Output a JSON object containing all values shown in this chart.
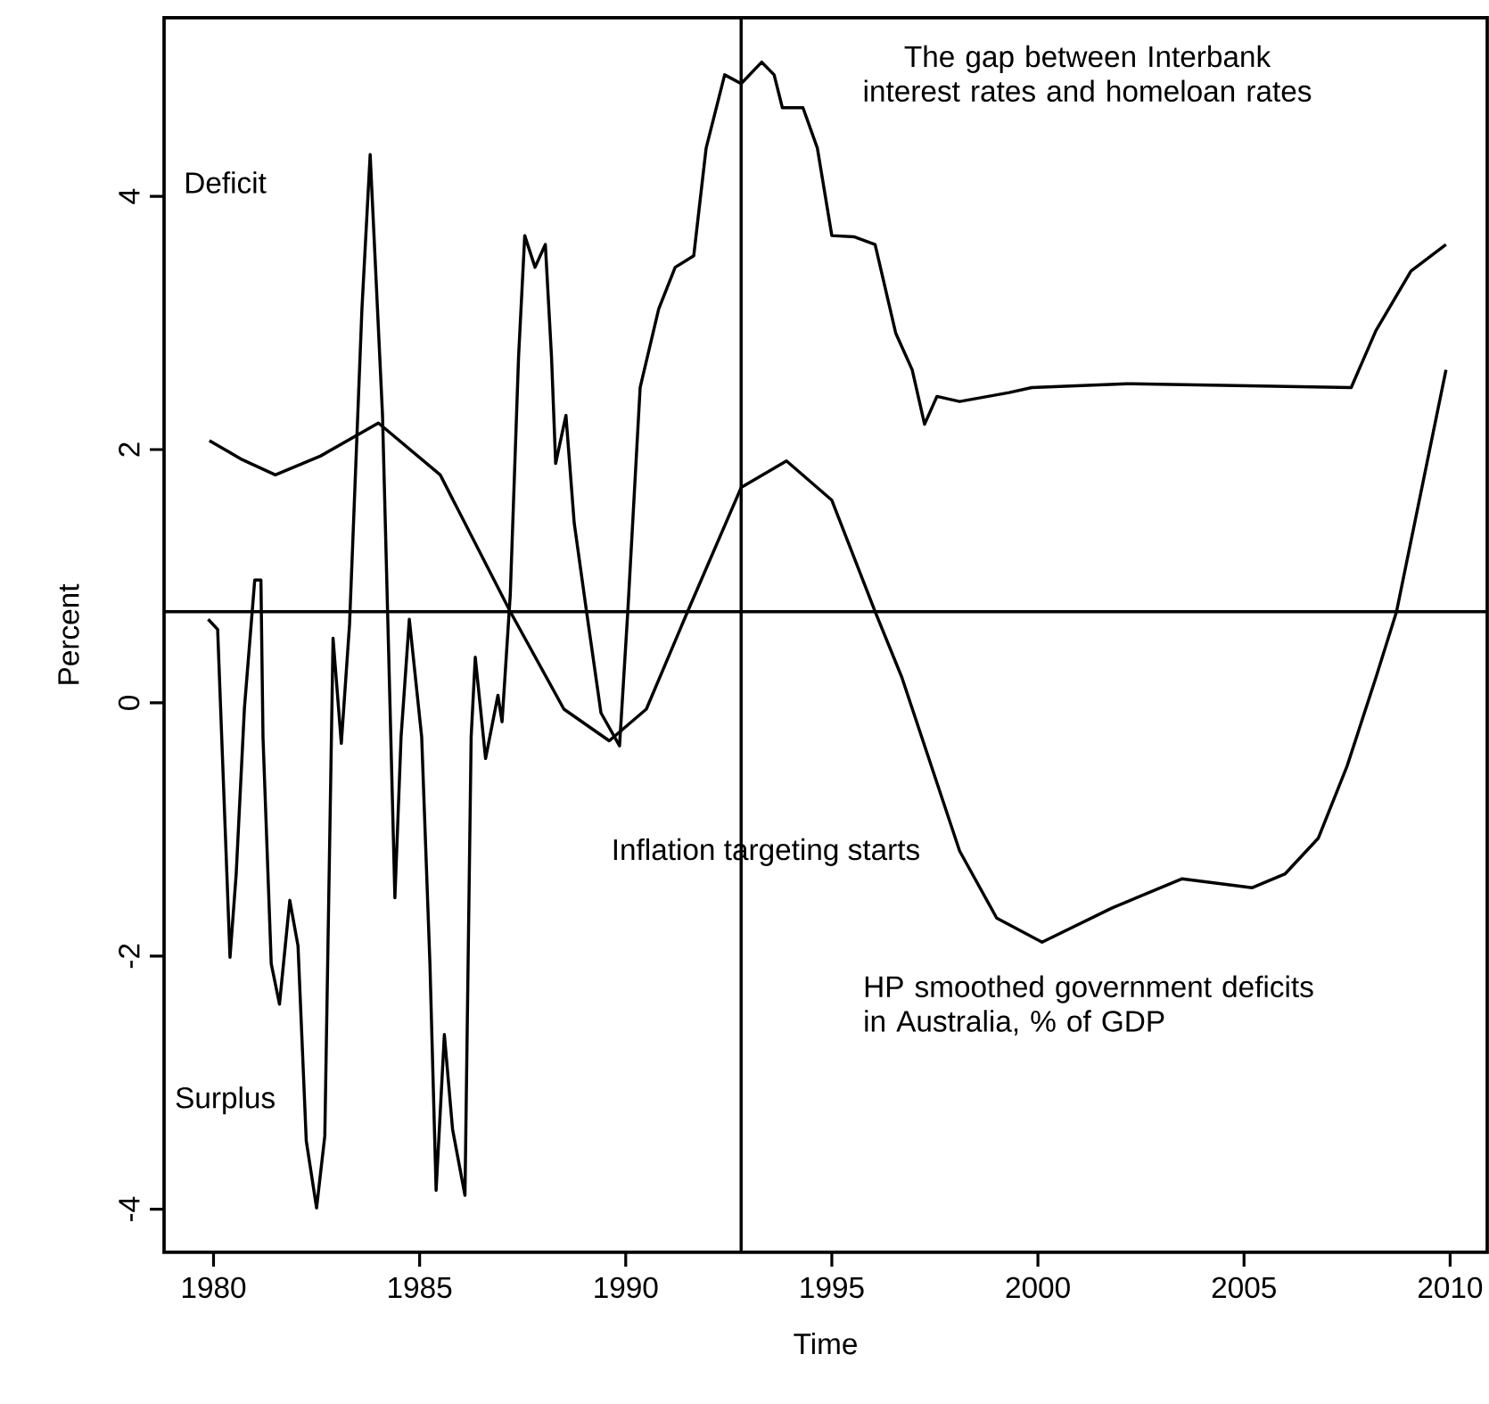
{
  "chart_data": {
    "type": "line",
    "xlabel": "Time",
    "ylabel": "Percent",
    "xlim": [
      1978.8,
      2010.9
    ],
    "ylim": [
      -4.34,
      5.41
    ],
    "xticks": [
      1980,
      1985,
      1990,
      1995,
      2000,
      2005,
      2010
    ],
    "yticks": [
      -4,
      -2,
      0,
      2,
      4
    ],
    "marker": "none",
    "line_style": "solid",
    "grid": false,
    "legend": false,
    "series": [
      {
        "name": "The gap between Interbank interest rates and homeloan rates",
        "color": "#000000",
        "x": [
          1979.87,
          1980.1,
          1980.4,
          1980.55,
          1980.75,
          1981.0,
          1981.15,
          1981.2,
          1981.4,
          1981.6,
          1981.85,
          1982.05,
          1982.25,
          1982.5,
          1982.7,
          1982.9,
          1983.1,
          1983.3,
          1983.6,
          1983.8,
          1984.1,
          1984.25,
          1984.4,
          1984.55,
          1984.75,
          1985.05,
          1985.25,
          1985.4,
          1985.6,
          1985.8,
          1986.1,
          1986.25,
          1986.35,
          1986.6,
          1986.9,
          1987.0,
          1987.2,
          1987.4,
          1987.55,
          1987.8,
          1988.05,
          1988.2,
          1988.3,
          1988.55,
          1988.75,
          1989.05,
          1989.4,
          1989.85,
          1990.05,
          1990.35,
          1990.8,
          1991.2,
          1991.65,
          1991.95,
          1992.4,
          1992.8,
          1993.3,
          1993.6,
          1993.8,
          1994.3,
          1994.65,
          1995.0,
          1995.55,
          1996.05,
          1996.55,
          1996.95,
          1997.25,
          1997.55,
          1998.1,
          1999.3,
          1999.85,
          2002.15,
          2007.6,
          2008.2,
          2009.05,
          2009.9
        ],
        "values": [
          0.66,
          0.58,
          -2.01,
          -1.35,
          -0.04,
          0.97,
          0.97,
          -0.27,
          -2.06,
          -2.38,
          -1.56,
          -1.92,
          -3.46,
          -3.99,
          -3.42,
          0.51,
          -0.32,
          0.62,
          3.11,
          4.33,
          2.27,
          0.38,
          -1.54,
          -0.27,
          0.66,
          -0.27,
          -2.06,
          -3.85,
          -2.62,
          -3.37,
          -3.89,
          -0.27,
          0.36,
          -0.44,
          0.06,
          -0.15,
          0.86,
          2.73,
          3.69,
          3.44,
          3.62,
          2.73,
          1.89,
          2.27,
          1.42,
          0.72,
          -0.08,
          -0.34,
          0.72,
          2.49,
          3.11,
          3.44,
          3.53,
          4.38,
          4.96,
          4.89,
          5.06,
          4.96,
          4.7,
          4.7,
          4.38,
          3.69,
          3.68,
          3.62,
          2.92,
          2.63,
          2.2,
          2.42,
          2.38,
          2.45,
          2.49,
          2.52,
          2.49,
          2.94,
          3.41,
          3.62
        ]
      },
      {
        "name": "HP smoothed government deficits in Australia, % of GDP",
        "color": "#000000",
        "x": [
          1979.9,
          1980.7,
          1981.5,
          1982.6,
          1984.0,
          1985.5,
          1987.2,
          1988.5,
          1989.6,
          1990.5,
          1991.5,
          1992.8,
          1993.9,
          1995.0,
          1996.05,
          1996.7,
          1998.1,
          1999.0,
          2000.1,
          2001.8,
          2003.5,
          2005.2,
          2006.0,
          2006.8,
          2007.5,
          2008.2,
          2008.7,
          2009.9
        ],
        "values": [
          2.07,
          1.92,
          1.8,
          1.95,
          2.21,
          1.8,
          0.72,
          -0.05,
          -0.3,
          -0.05,
          0.72,
          1.7,
          1.91,
          1.6,
          0.72,
          0.2,
          -1.17,
          -1.7,
          -1.89,
          -1.62,
          -1.39,
          -1.46,
          -1.35,
          -1.07,
          -0.5,
          0.2,
          0.72,
          2.63
        ]
      }
    ],
    "ref_lines": [
      {
        "axis": "y",
        "value": 0.72
      },
      {
        "axis": "x",
        "value": 1992.8,
        "label": "Inflation targeting starts"
      }
    ],
    "annotations": [
      "Deficit",
      "Surplus"
    ]
  }
}
